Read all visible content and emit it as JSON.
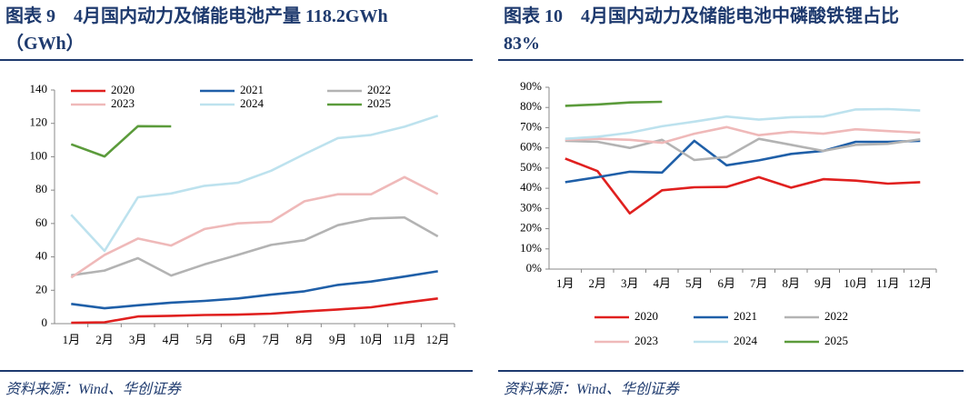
{
  "chart_data": [
    {
      "type": "line",
      "title": [
        "图表 9　4月国内动力及储能电池产量 118.2GWh",
        "（GWh）"
      ],
      "source": "资料来源：Wind、华创证券",
      "categories": [
        "1月",
        "2月",
        "3月",
        "4月",
        "5月",
        "6月",
        "7月",
        "8月",
        "9月",
        "10月",
        "11月",
        "12月"
      ],
      "ylim": [
        0,
        140
      ],
      "yticks": [
        0,
        20,
        40,
        60,
        80,
        100,
        120,
        140
      ],
      "legend": "top",
      "series": [
        {
          "name": "2020",
          "color": "#e0201f",
          "values": [
            0.5,
            0.8,
            4.3,
            4.7,
            5.2,
            5.4,
            6.0,
            7.3,
            8.5,
            9.8,
            12.6,
            15.1
          ]
        },
        {
          "name": "2021",
          "color": "#1f5fa8",
          "values": [
            11.8,
            9.2,
            11.0,
            12.6,
            13.6,
            15.1,
            17.4,
            19.4,
            23.2,
            25.2,
            28.2,
            31.4
          ]
        },
        {
          "name": "2022",
          "color": "#b3b3b3",
          "values": [
            29.0,
            31.8,
            39.2,
            28.8,
            35.5,
            41.2,
            47.2,
            50.0,
            59.0,
            63.0,
            63.6,
            52.3
          ]
        },
        {
          "name": "2023",
          "color": "#efb9b9",
          "values": [
            27.6,
            41.2,
            51.0,
            46.8,
            56.7,
            60.1,
            61.0,
            73.3,
            77.5,
            77.5,
            87.8,
            77.6
          ]
        },
        {
          "name": "2024",
          "color": "#bde2ee",
          "values": [
            65.2,
            43.6,
            75.7,
            78.0,
            82.6,
            84.4,
            91.6,
            101.6,
            111.2,
            113.1,
            118.0,
            124.6
          ]
        },
        {
          "name": "2025",
          "color": "#5b9b3b",
          "values": [
            107.5,
            100.2,
            118.3,
            118.2,
            null,
            null,
            null,
            null,
            null,
            null,
            null,
            null
          ]
        }
      ]
    },
    {
      "type": "line",
      "title": [
        "图表 10　4月国内动力及储能电池中磷酸铁锂占比",
        "83%"
      ],
      "source": "资料来源：Wind、华创证券",
      "categories": [
        "1月",
        "2月",
        "3月",
        "4月",
        "5月",
        "6月",
        "7月",
        "8月",
        "9月",
        "10月",
        "11月",
        "12月"
      ],
      "ylim": [
        0,
        90
      ],
      "yticks": [
        {
          "value": 0,
          "label": "0%"
        },
        {
          "value": 10,
          "label": "10%"
        },
        {
          "value": 20,
          "label": "20%"
        },
        {
          "value": 30,
          "label": "30%"
        },
        {
          "value": 40,
          "label": "40%"
        },
        {
          "value": 50,
          "label": "50%"
        },
        {
          "value": 60,
          "label": "60%"
        },
        {
          "value": 70,
          "label": "70%"
        },
        {
          "value": 80,
          "label": "80%"
        },
        {
          "value": 90,
          "label": "90%"
        }
      ],
      "legend": "bottom",
      "series": [
        {
          "name": "2020",
          "color": "#e0201f",
          "values": [
            54.7,
            48.5,
            27.6,
            39.0,
            40.5,
            40.7,
            45.5,
            40.3,
            44.5,
            43.8,
            42.3,
            43.0
          ]
        },
        {
          "name": "2021",
          "color": "#1f5fa8",
          "values": [
            43.0,
            45.5,
            48.2,
            47.8,
            63.5,
            51.4,
            53.8,
            57.0,
            58.5,
            63.0,
            63.0,
            63.5
          ]
        },
        {
          "name": "2022",
          "color": "#b3b3b3",
          "values": [
            63.5,
            63.0,
            60.0,
            64.0,
            54.0,
            55.5,
            64.5,
            61.5,
            58.5,
            61.5,
            62.0,
            64.2
          ]
        },
        {
          "name": "2023",
          "color": "#efb9b9",
          "values": [
            64.0,
            64.5,
            64.0,
            62.5,
            67.0,
            70.3,
            66.3,
            68.0,
            67.0,
            69.2,
            68.3,
            67.5
          ]
        },
        {
          "name": "2024",
          "color": "#bde2ee",
          "values": [
            64.5,
            65.5,
            67.5,
            70.7,
            73.0,
            75.5,
            74.0,
            75.2,
            75.5,
            79.0,
            79.2,
            78.5
          ]
        },
        {
          "name": "2025",
          "color": "#5b9b3b",
          "values": [
            80.8,
            81.5,
            82.5,
            82.8,
            null,
            null,
            null,
            null,
            null,
            null,
            null,
            null
          ]
        }
      ]
    }
  ]
}
